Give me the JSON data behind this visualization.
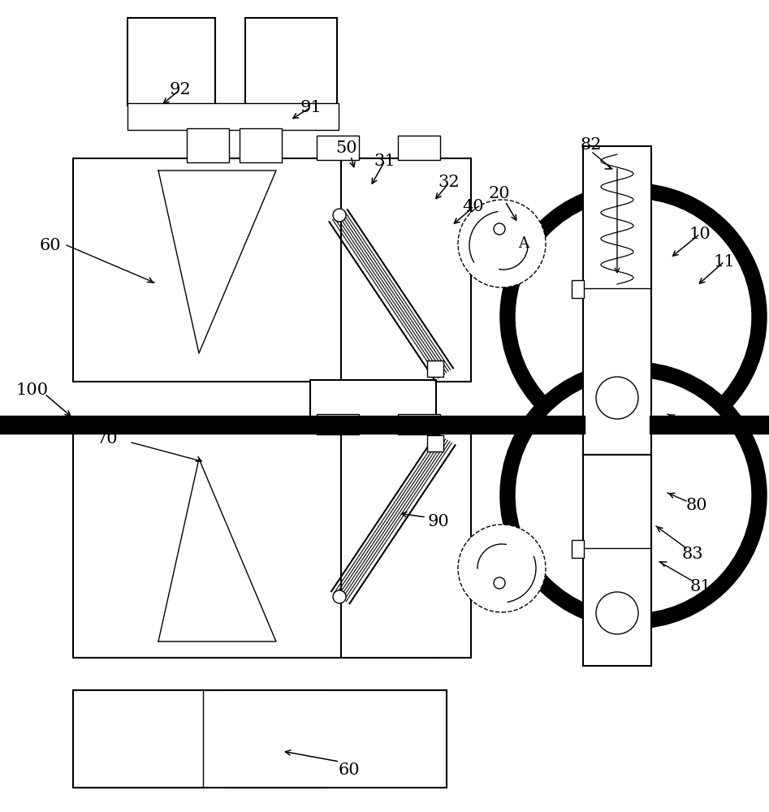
{
  "bg_color": "#ffffff",
  "line_color": "#000000",
  "lw_thin": 1.0,
  "lw_med": 1.5,
  "lw_xthick": 14.0,
  "font_size": 15
}
